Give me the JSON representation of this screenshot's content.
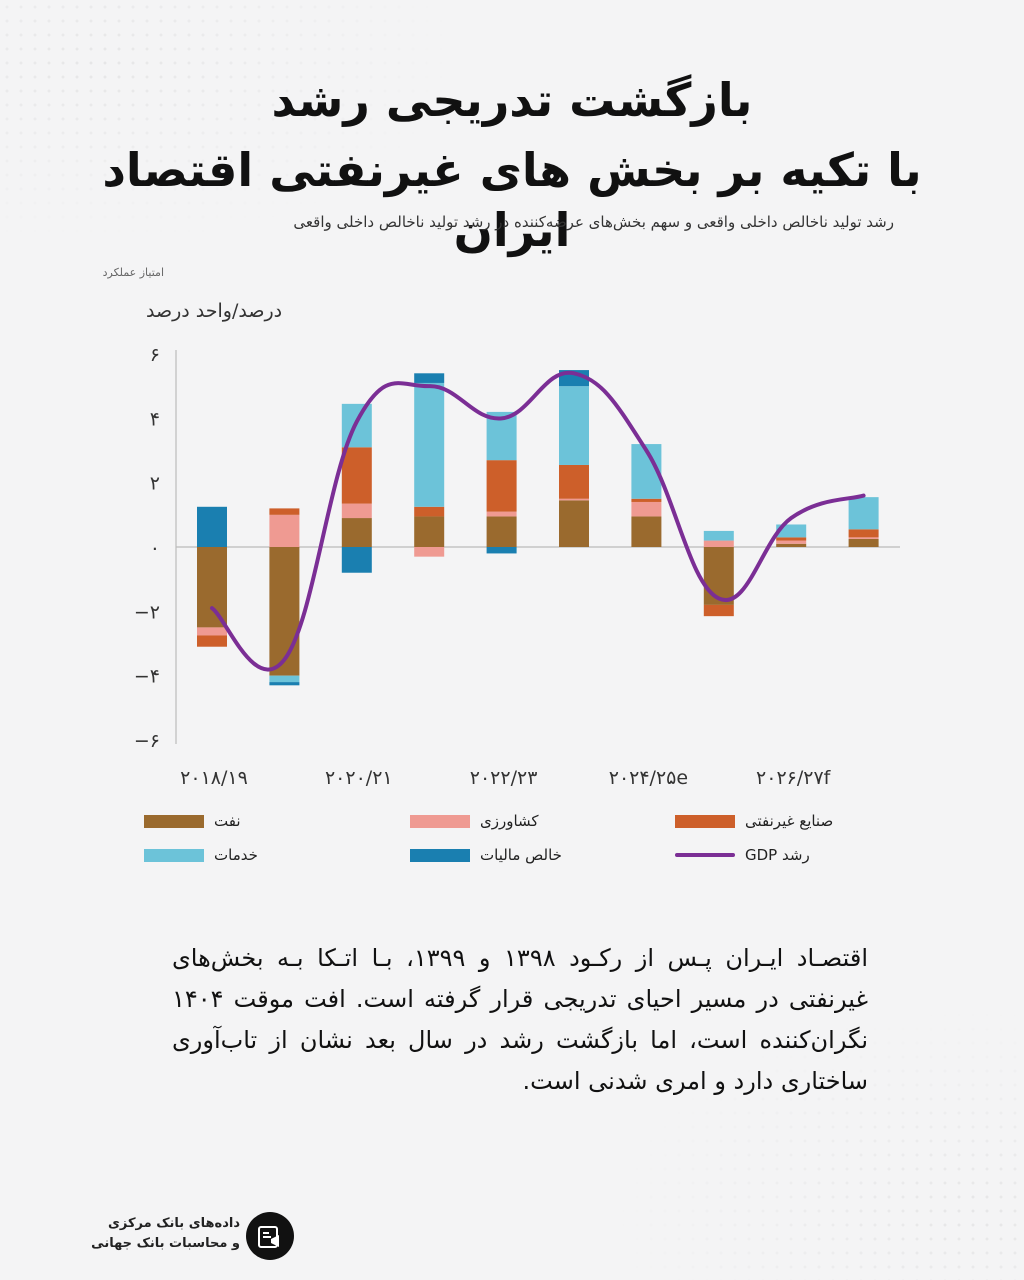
{
  "title_line1": "بازگشت تدریجی رشد",
  "title_line2": "با تکیه بر بخش های غیرنفتی اقتصاد ایران",
  "subtitle": "رشد تولید ناخالص داخلی واقعی و سهم بخش‌های عرضه‌کننده در رشد تولید ناخالص داخلی واقعی",
  "subnote": "امتیاز عملکرد",
  "y_unit": "درصد/واحد درصد",
  "colors": {
    "oil": "#9a6a2e",
    "agriculture": "#ef9a92",
    "industry": "#cd5f2a",
    "services": "#6cc3d9",
    "net_taxes": "#1a7fb0",
    "gdp_line": "#7b2e95",
    "background": "#f4f4f5"
  },
  "chart_data": {
    "type": "bar",
    "stacked": true,
    "categories": [
      "2018/19",
      "2019/20",
      "2020/21",
      "2021/22",
      "2022/23",
      "2023/24",
      "2024/25e",
      "2025/26f",
      "2026/27f",
      "2027/28f"
    ],
    "x_tick_labels": [
      "۲۰۱۸/۱۹",
      "۲۰۲۰/۲۱",
      "۲۰۲۲/۲۳",
      "۲۰۲۴/۲۵e",
      "۲۰۲۶/۲۷f"
    ],
    "y_tick_labels": [
      "۶",
      "۴",
      "۲",
      "۰",
      "−۲",
      "−۴",
      "−۶"
    ],
    "ylim": [
      -6,
      6
    ],
    "grid": false,
    "legend_position": "bottom",
    "series": [
      {
        "name": "نفت",
        "key": "oil",
        "values": [
          -2.5,
          -4.0,
          0.9,
          0.95,
          0.95,
          1.45,
          0.95,
          -1.8,
          0.1,
          0.25
        ]
      },
      {
        "name": "کشاورزی",
        "key": "agriculture",
        "values": [
          -0.25,
          1.0,
          0.45,
          -0.3,
          0.15,
          0.05,
          0.45,
          0.2,
          0.1,
          0.05
        ]
      },
      {
        "name": "صنایع غیرنفتی",
        "key": "industry",
        "values": [
          -0.35,
          0.2,
          1.75,
          0.3,
          1.6,
          1.05,
          0.1,
          -0.35,
          0.1,
          0.25
        ]
      },
      {
        "name": "خدمات",
        "key": "services",
        "values": [
          0,
          -0.2,
          1.35,
          3.85,
          1.5,
          2.45,
          1.7,
          0.3,
          0.4,
          1.0
        ]
      },
      {
        "name": "خالص مالیات",
        "key": "net_taxes",
        "values": [
          1.25,
          -0.1,
          -0.8,
          0.3,
          -0.2,
          0.5,
          0,
          0,
          0,
          0
        ]
      },
      {
        "name": "رشد GDP",
        "key": "gdp",
        "type": "line",
        "values": [
          -1.9,
          -3.5,
          3.9,
          5.0,
          4.0,
          5.4,
          3.0,
          -1.6,
          0.9,
          1.6
        ]
      }
    ]
  },
  "source_line1": "داده‌های بانک مرکزی",
  "source_line2": "و محاسبات بانک جهانی",
  "body_text": "اقتصـاد ایـران پـس از رکـود ۱۳۹۸ و ۱۳۹۹، بـا اتـکا بـه بخش‌های غیرنفتی در مسیر احیای تدریجی قرار گرفته است. افت موقت ۱۴۰۴ نگران‌کننده است، اما بازگشت رشد در سال بعد نشان از تاب‌آوری ساختاری دارد و امری شدنی است."
}
